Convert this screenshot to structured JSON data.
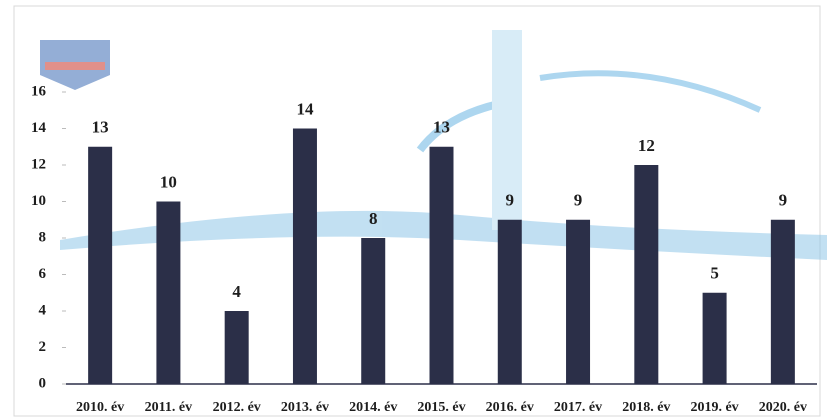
{
  "chart_data": {
    "type": "bar",
    "categories": [
      "2010. év",
      "2011. év",
      "2012. év",
      "2013. év",
      "2014. év",
      "2015. év",
      "2016. év",
      "2017. év",
      "2018. év",
      "2019. év",
      "2020. év"
    ],
    "values": [
      13,
      10,
      4,
      14,
      8,
      13,
      9,
      9,
      12,
      5,
      9
    ],
    "color": "#2b2f48",
    "ylim": [
      0,
      16
    ],
    "yticks": [
      0,
      2,
      4,
      6,
      8,
      10,
      12,
      14,
      16
    ],
    "grid": false
  }
}
